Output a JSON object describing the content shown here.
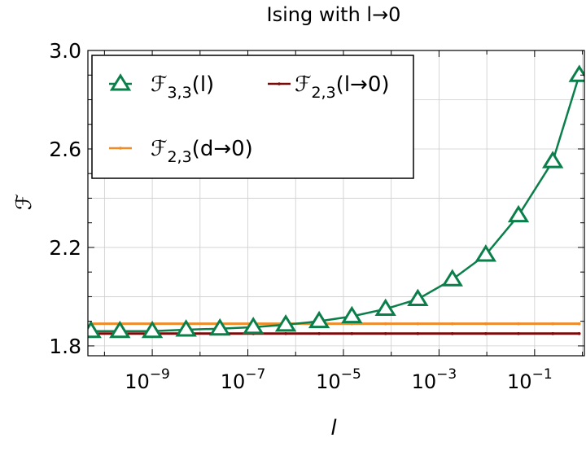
{
  "chart_data": {
    "type": "line",
    "title": "Ising with l→0",
    "x_label": "l",
    "y_label": "ℱ",
    "xlog": true,
    "grid": true,
    "legend": "upper left",
    "xlim": [
      4.5e-11,
      1.1
    ],
    "ylim": [
      1.76,
      3.0
    ],
    "xticks": [
      {
        "value": 1e-09,
        "label": "10",
        "exponent": "−9"
      },
      {
        "value": 1e-07,
        "label": "10",
        "exponent": "−7"
      },
      {
        "value": 1e-05,
        "label": "10",
        "exponent": "−5"
      },
      {
        "value": 0.001,
        "label": "10",
        "exponent": "−3"
      },
      {
        "value": 0.1,
        "label": "10",
        "exponent": "−1"
      }
    ],
    "xminor": [
      1e-10,
      1e-08,
      1e-06,
      0.0001,
      0.01,
      1
    ],
    "yticks": [
      1.8,
      2.2,
      2.6,
      {
        "value": 3,
        "label": "3.0"
      }
    ],
    "yminor": [
      1.9,
      2.0,
      2.1,
      2.3,
      2.4,
      2.5,
      2.7,
      2.8,
      2.9
    ],
    "x": [
      5.2e-11,
      2.1e-10,
      1e-09,
      5.1e-09,
      2.6e-08,
      1.3e-07,
      6.2e-07,
      3.1e-06,
      1.5e-05,
      7.6e-05,
      0.00036,
      0.0019,
      0.0095,
      0.046,
      0.24,
      0.86
    ],
    "series": [
      {
        "name": "ℱ",
        "sub": "3,3",
        "suffix": "(l)",
        "color": "#0b7f4a",
        "marker": "triangle",
        "values": [
          1.86,
          1.86,
          1.86,
          1.866,
          1.87,
          1.876,
          1.886,
          1.9,
          1.92,
          1.95,
          1.99,
          2.07,
          2.17,
          2.33,
          2.55,
          2.9
        ]
      },
      {
        "name": "ℱ",
        "sub": "2,3",
        "suffix": "(l→0)",
        "color": "#7a0a0a",
        "marker": "dot",
        "values": [
          1.85,
          1.85,
          1.85,
          1.85,
          1.85,
          1.85,
          1.85,
          1.85,
          1.85,
          1.85,
          1.85,
          1.85,
          1.85,
          1.85,
          1.85,
          1.85
        ]
      },
      {
        "name": "ℱ",
        "sub": "2,3",
        "suffix": "(d→0)",
        "color": "#f08c28",
        "marker": "dot",
        "values": [
          1.89,
          1.89,
          1.89,
          1.89,
          1.89,
          1.89,
          1.89,
          1.89,
          1.89,
          1.89,
          1.89,
          1.89,
          1.89,
          1.89,
          1.89,
          1.89
        ]
      }
    ]
  }
}
